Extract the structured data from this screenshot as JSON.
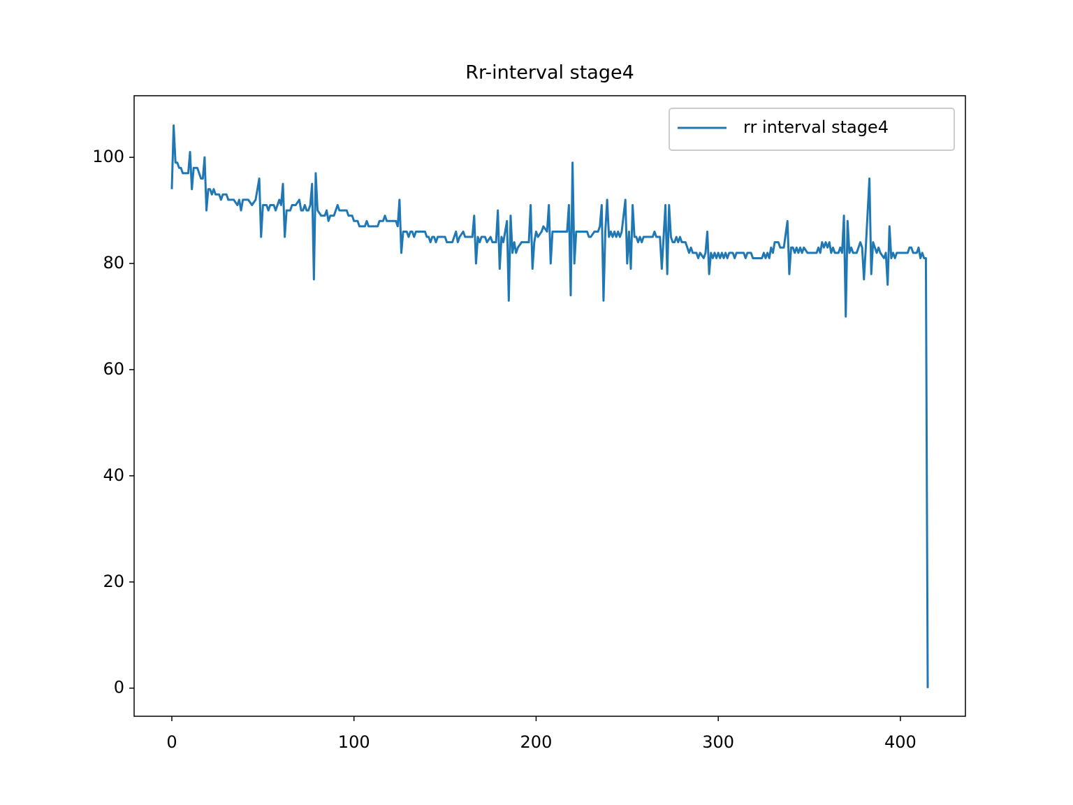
{
  "chart_data": {
    "type": "line",
    "title": "Rr-interval stage4",
    "x": [
      0,
      1,
      2,
      3,
      4,
      5,
      6,
      8,
      9,
      10,
      11,
      12,
      14,
      16,
      17,
      18,
      19,
      20,
      21,
      22,
      23,
      24,
      26,
      27,
      28,
      30,
      31,
      32,
      34,
      36,
      37,
      38,
      39,
      42,
      44,
      46,
      48,
      49,
      50,
      52,
      53,
      54,
      56,
      57,
      58,
      59,
      60,
      61,
      62,
      63,
      65,
      66,
      68,
      70,
      71,
      72,
      73,
      74,
      75,
      76,
      77,
      78,
      79,
      80,
      82,
      84,
      85,
      86,
      87,
      89,
      91,
      92,
      96,
      97,
      99,
      100,
      102,
      103,
      106,
      107,
      108,
      113,
      114,
      116,
      117,
      118,
      123,
      124,
      125,
      126,
      127,
      129,
      130,
      131,
      132,
      133,
      134,
      139,
      140,
      141,
      142,
      143,
      144,
      145,
      146,
      150,
      151,
      154,
      155,
      156,
      157,
      158,
      160,
      161,
      163,
      165,
      166,
      167,
      168,
      169,
      170,
      172,
      173,
      175,
      176,
      178,
      179,
      180,
      181,
      182,
      184,
      185,
      186,
      187,
      188,
      189,
      190,
      192,
      196,
      197,
      198,
      199,
      200,
      201,
      203,
      204,
      206,
      207,
      208,
      209,
      211,
      217,
      218,
      219,
      220,
      221,
      222,
      224,
      228,
      229,
      230,
      232,
      234,
      235,
      236,
      237,
      238,
      239,
      240,
      241,
      242,
      243,
      244,
      245,
      246,
      247,
      249,
      250,
      251,
      252,
      253,
      254,
      255,
      256,
      257,
      258,
      259,
      264,
      265,
      266,
      268,
      269,
      270,
      271,
      272,
      273,
      274,
      275,
      276,
      277,
      278,
      279,
      280,
      282,
      283,
      284,
      285,
      286,
      288,
      289,
      290,
      292,
      293,
      294,
      295,
      296,
      297,
      298,
      299,
      300,
      301,
      302,
      303,
      304,
      305,
      306,
      308,
      309,
      310,
      314,
      315,
      316,
      318,
      319,
      324,
      325,
      326,
      327,
      328,
      329,
      330,
      331,
      333,
      334,
      336,
      338,
      339,
      340,
      341,
      342,
      343,
      344,
      345,
      346,
      347,
      349,
      354,
      355,
      356,
      357,
      358,
      359,
      360,
      361,
      362,
      363,
      364,
      366,
      367,
      368,
      369,
      370,
      371,
      372,
      373,
      374,
      376,
      377,
      378,
      379,
      380,
      381,
      383,
      384,
      385,
      386,
      387,
      388,
      389,
      391,
      392,
      393,
      394,
      395,
      396,
      397,
      398,
      404,
      405,
      406,
      407,
      409,
      410,
      411,
      412,
      413,
      414,
      415
    ],
    "series": [
      {
        "name": "rr interval stage4",
        "color": "#1f77b4",
        "values": [
          94,
          106,
          99,
          99,
          98,
          98,
          97,
          97,
          97,
          101,
          94,
          98,
          98,
          96,
          96,
          100,
          90,
          94,
          94,
          93,
          94,
          93,
          93,
          92,
          93,
          93,
          92,
          92,
          92,
          91,
          92,
          90,
          92,
          92,
          91,
          92,
          96,
          85,
          91,
          91,
          90,
          91,
          91,
          90,
          91,
          92,
          91,
          95,
          85,
          90,
          90,
          91,
          91,
          92,
          90,
          90,
          91,
          90,
          90,
          91,
          95,
          77,
          97,
          90,
          89,
          89,
          90,
          88,
          89,
          89,
          91,
          90,
          90,
          89,
          89,
          88,
          88,
          87,
          87,
          88,
          87,
          87,
          88,
          88,
          89,
          88,
          88,
          87,
          92,
          82,
          86,
          86,
          85,
          86,
          86,
          85,
          86,
          86,
          85,
          85,
          84,
          85,
          85,
          84,
          85,
          85,
          84,
          84,
          85,
          86,
          84,
          85,
          86,
          85,
          85,
          85,
          89,
          80,
          85,
          84,
          85,
          85,
          84,
          85,
          84,
          84,
          90,
          79,
          85,
          84,
          88,
          73,
          89,
          82,
          84,
          82,
          83,
          84,
          84,
          91,
          79,
          84,
          86,
          85,
          86,
          87,
          86,
          91,
          80,
          86,
          86,
          86,
          91,
          74,
          99,
          80,
          86,
          86,
          86,
          85,
          85,
          86,
          86,
          87,
          91,
          73,
          86,
          92,
          85,
          86,
          85,
          86,
          85,
          86,
          85,
          86,
          92,
          80,
          86,
          79,
          91,
          85,
          85,
          84,
          85,
          84,
          85,
          85,
          86,
          85,
          85,
          79,
          85,
          91,
          78,
          91,
          85,
          84,
          84,
          85,
          84,
          85,
          84,
          84,
          83,
          82,
          83,
          82,
          82,
          81,
          82,
          81,
          82,
          86,
          78,
          82,
          81,
          82,
          81,
          82,
          81,
          82,
          81,
          82,
          81,
          82,
          82,
          81,
          82,
          82,
          81,
          82,
          82,
          81,
          81,
          82,
          81,
          82,
          81,
          83,
          82,
          84,
          84,
          83,
          83,
          88,
          78,
          83,
          83,
          82,
          83,
          82,
          83,
          82,
          83,
          82,
          82,
          83,
          82,
          84,
          83,
          84,
          83,
          84,
          82,
          83,
          82,
          82,
          83,
          82,
          89,
          70,
          88,
          82,
          83,
          82,
          82,
          83,
          84,
          83,
          77,
          83,
          96,
          78,
          84,
          83,
          82,
          83,
          82,
          81,
          82,
          76,
          87,
          81,
          82,
          81,
          82,
          82,
          83,
          83,
          82,
          82,
          83,
          81,
          82,
          81,
          81,
          0
        ]
      }
    ],
    "xlim": [
      -20.7,
      435.7
    ],
    "ylim": [
      -5.3,
      111.6
    ],
    "xticks": [
      0,
      100,
      200,
      300,
      400
    ],
    "yticks": [
      0,
      20,
      40,
      60,
      80,
      100
    ],
    "legend": "upper right"
  }
}
